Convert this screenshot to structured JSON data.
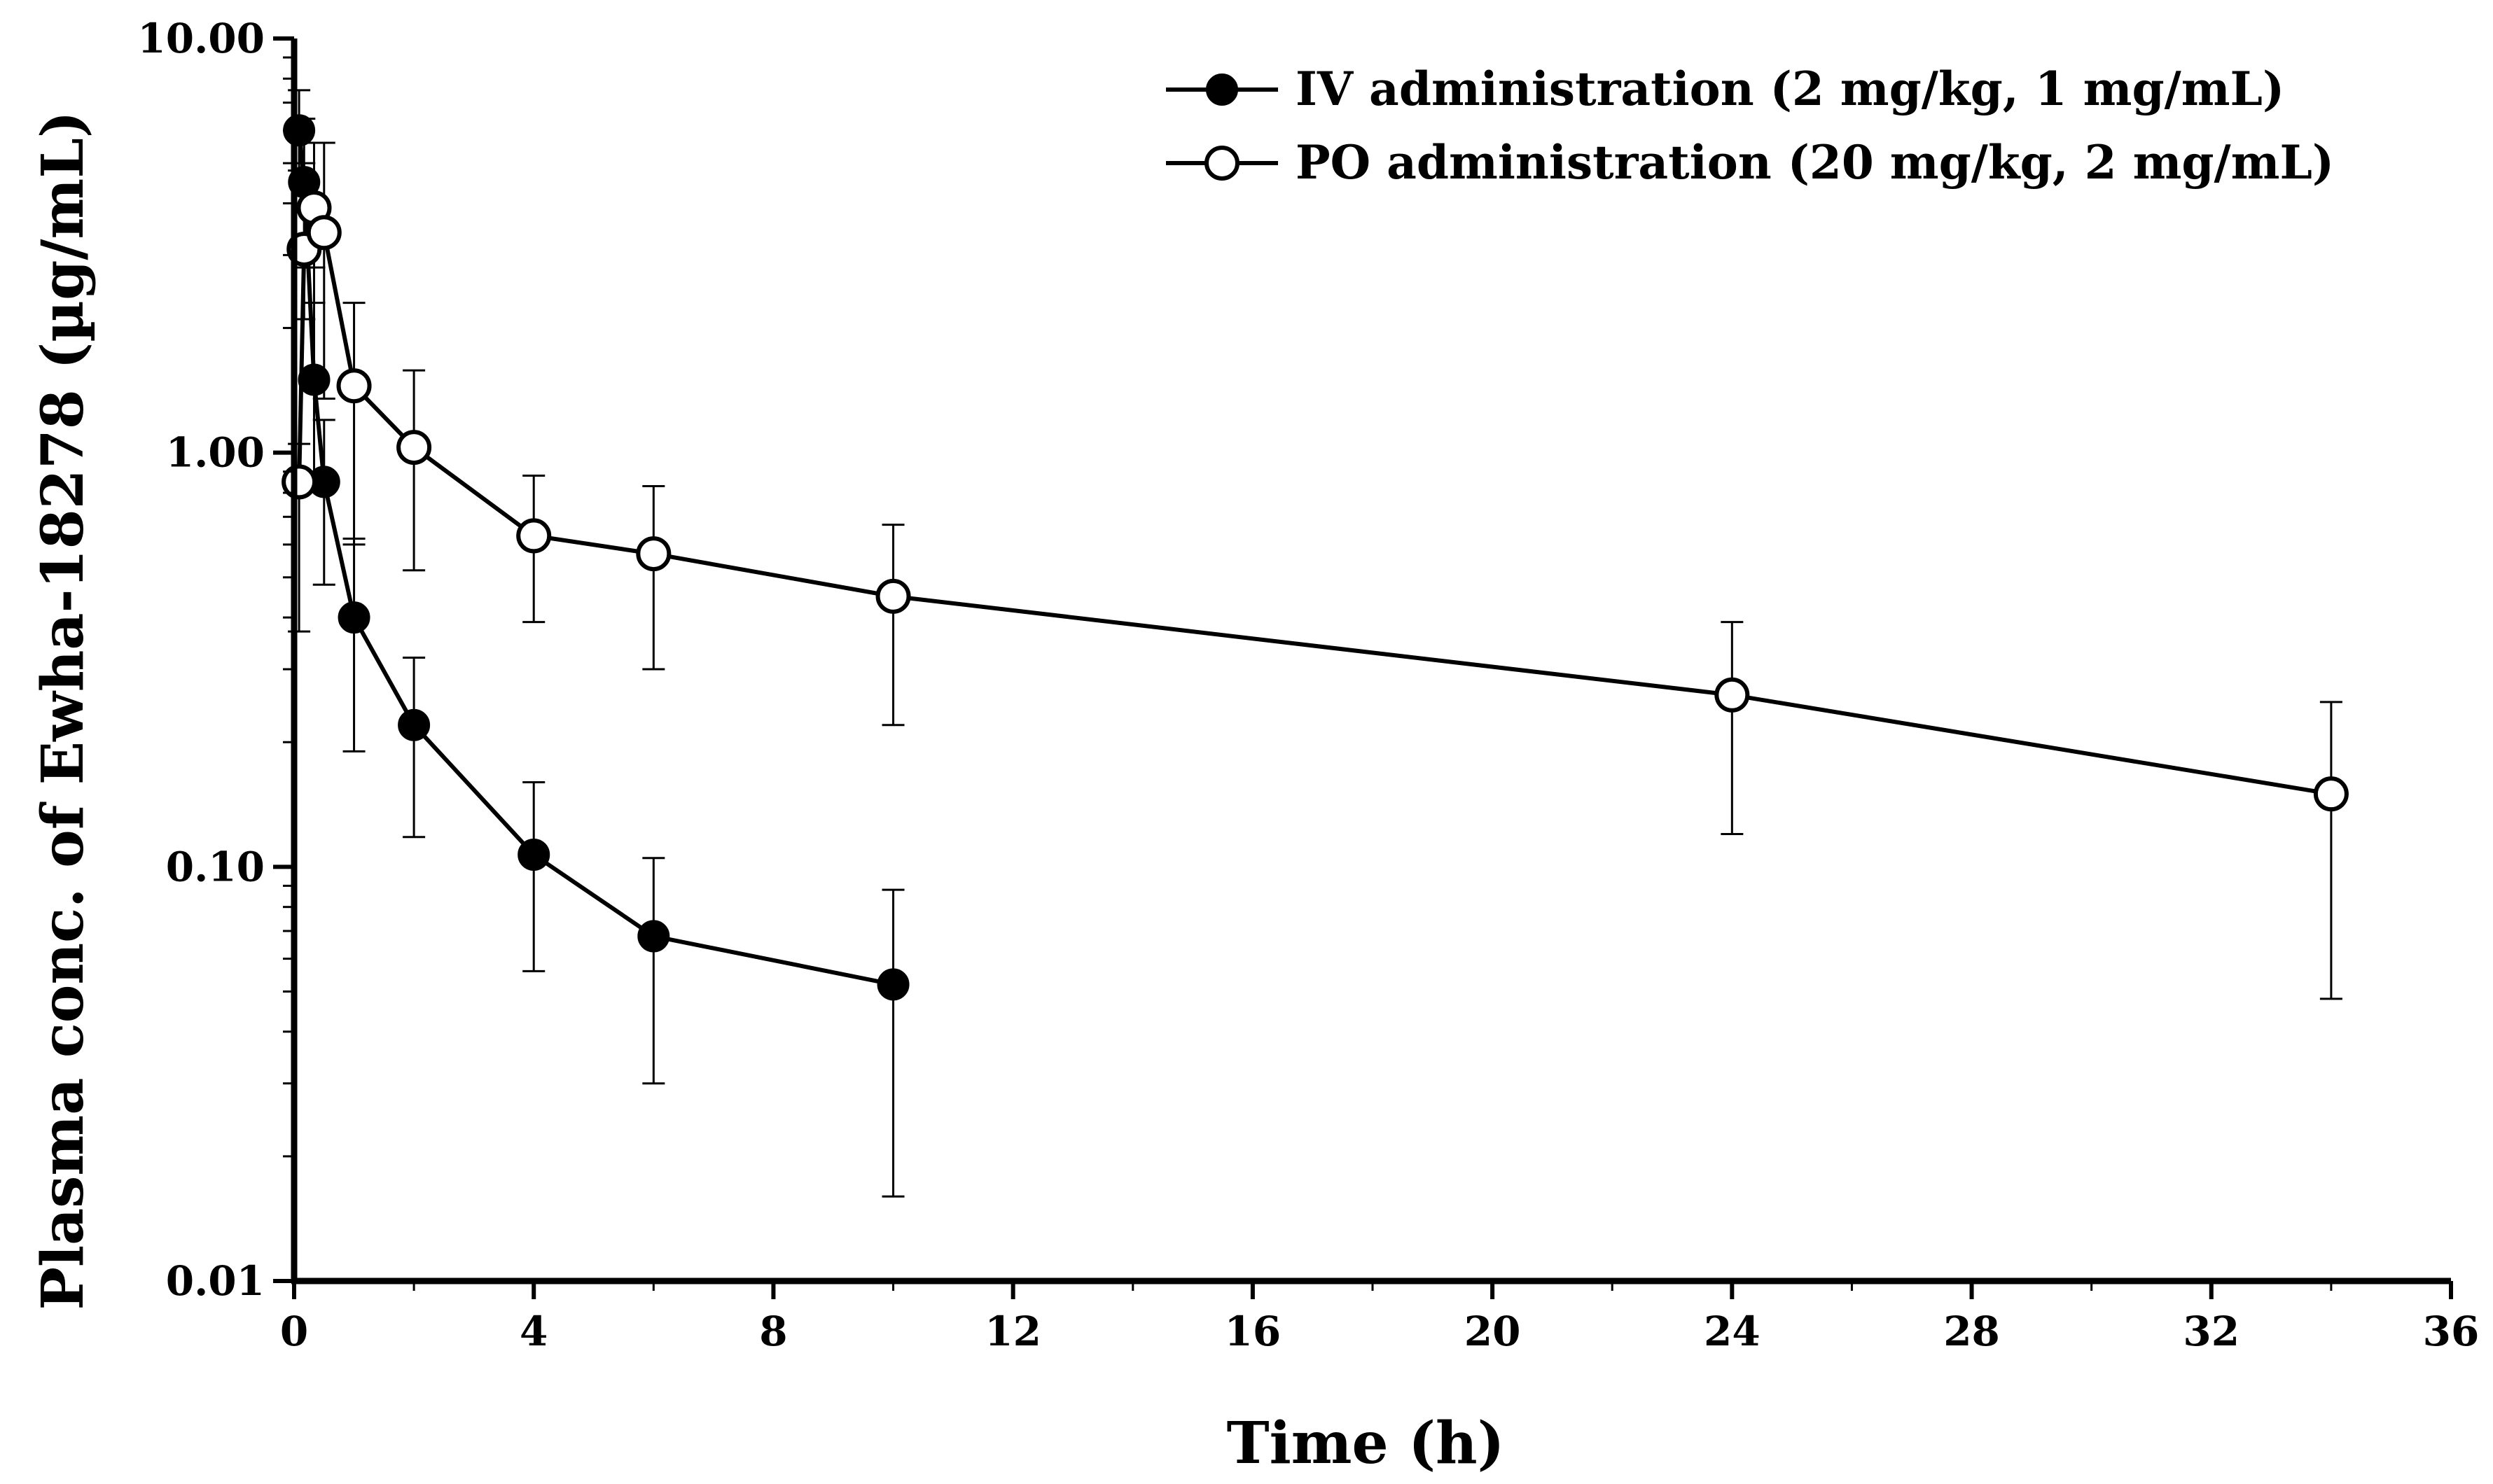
{
  "chart_data": {
    "type": "line",
    "title": "",
    "xlabel": "Time (h)",
    "ylabel": "Plasma conc. of Ewha-18278 (µg/mL)",
    "yscale": "log",
    "xlim": [
      0,
      36
    ],
    "ylim": [
      0.01,
      10
    ],
    "x_ticks": [
      0,
      4,
      8,
      12,
      16,
      20,
      24,
      28,
      32,
      36
    ],
    "x_tick_labels": [
      "0",
      "4",
      "8",
      "12",
      "16",
      "20",
      "24",
      "28",
      "32",
      "36"
    ],
    "y_ticks": [
      0.01,
      0.1,
      1,
      10
    ],
    "y_tick_labels": [
      "0.01",
      "0.10",
      "1.00",
      "10.00"
    ],
    "grid": false,
    "legend_position": "top-right",
    "series": [
      {
        "name": "IV administration (2 mg/kg, 1 mg/mL)",
        "marker": "filled-circle",
        "x": [
          0.083,
          0.167,
          0.333,
          0.5,
          1,
          2,
          4,
          6,
          10
        ],
        "y": [
          6.0,
          4.5,
          1.5,
          0.85,
          0.4,
          0.22,
          0.107,
          0.068,
          0.052
        ],
        "err_upper": [
          7.5,
          6.4,
          2.8,
          1.2,
          0.62,
          0.32,
          0.16,
          0.105,
          0.088
        ],
        "err_lower": [
          4.8,
          2.8,
          0.9,
          0.48,
          0.19,
          0.118,
          0.056,
          0.03,
          0.016
        ]
      },
      {
        "name": "PO administration (20 mg/kg, 2 mg/mL)",
        "marker": "open-circle",
        "x": [
          0.083,
          0.167,
          0.333,
          0.5,
          1,
          2,
          4,
          6,
          10,
          24,
          34
        ],
        "y": [
          0.85,
          3.1,
          3.9,
          3.4,
          1.45,
          1.03,
          0.63,
          0.57,
          0.45,
          0.26,
          0.15
        ],
        "err_upper": [
          1.05,
          5.0,
          5.6,
          5.6,
          2.3,
          1.58,
          0.88,
          0.83,
          0.67,
          0.39,
          0.25
        ],
        "err_lower": [
          0.37,
          2.1,
          2.3,
          1.35,
          0.6,
          0.52,
          0.39,
          0.3,
          0.22,
          0.12,
          0.048
        ]
      }
    ]
  }
}
